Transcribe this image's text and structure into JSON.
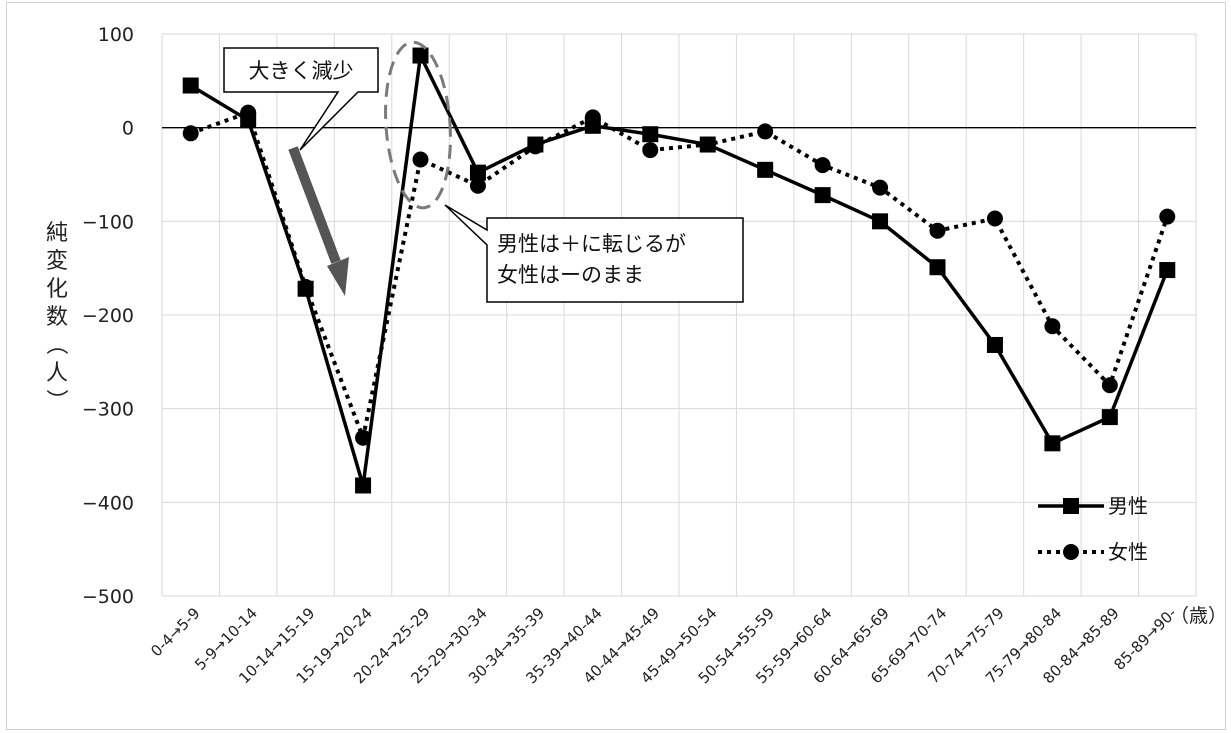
{
  "chart_data": {
    "type": "line",
    "title": "",
    "ylabel": "純変化数（人）",
    "x_unit": "（歳）",
    "ylim": [
      -500,
      100
    ],
    "yticks": [
      100,
      0,
      -100,
      -200,
      -300,
      -400,
      -500
    ],
    "categories": [
      "0-4→5-9",
      "5-9→10-14",
      "10-14→15-19",
      "15-19→20-24",
      "20-24→25-29",
      "25-29→30-34",
      "30-34→35-39",
      "35-39→40-44",
      "40-44→45-49",
      "45-49→50-54",
      "50-54→55-59",
      "55-59→60-64",
      "60-64→65-69",
      "65-69→70-74",
      "70-74→75-79",
      "75-79→80-84",
      "80-84→85-89",
      "85-89→90-"
    ],
    "series": [
      {
        "name": "男性",
        "style": "solid",
        "marker": "square",
        "values": [
          45,
          8,
          -172,
          -382,
          77,
          -48,
          -18,
          2,
          -7,
          -18,
          -45,
          -72,
          -100,
          -149,
          -232,
          -337,
          -309,
          -152
        ]
      },
      {
        "name": "女性",
        "style": "dotted",
        "marker": "circle",
        "values": [
          -6,
          16,
          -170,
          -331,
          -34,
          -62,
          -20,
          11,
          -24,
          -18,
          -4,
          -40,
          -64,
          -110,
          -97,
          -212,
          -275,
          -95
        ]
      }
    ],
    "legend": "bottom-right",
    "grid": true,
    "annotations": [
      {
        "id": "decrease",
        "lines": [
          "大きく減少"
        ]
      },
      {
        "id": "turn",
        "lines": [
          "男性は＋に転じるが",
          "女性はーのまま"
        ]
      }
    ]
  }
}
